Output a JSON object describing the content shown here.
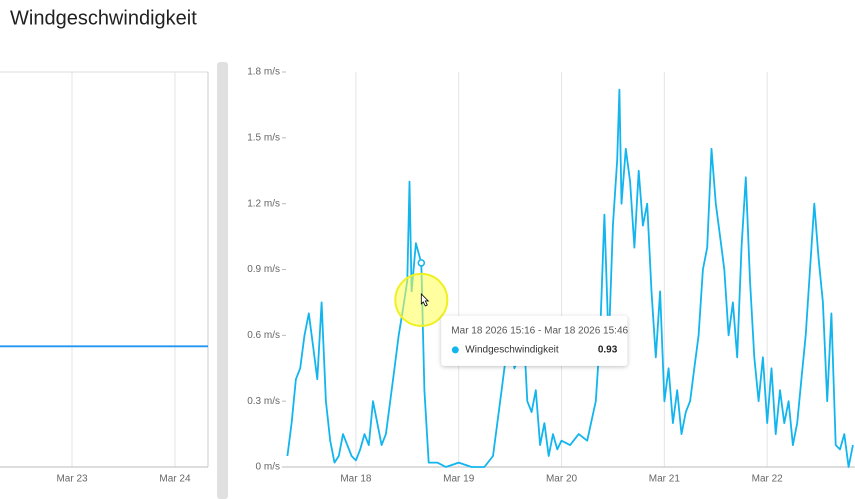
{
  "header": {
    "title": "Windgeschwindigkeit"
  },
  "chart_data": [
    {
      "type": "line",
      "x": [
        "2026-03-22T07:13",
        "2026-03-24T07:42"
      ],
      "series": [
        {
          "name": "Windgeschwindigkeit",
          "color": "#2196f3",
          "values": [
            0.55,
            0.55
          ]
        }
      ],
      "xlim": [
        "2026-03-22T07:13",
        "2026-03-24T07:42"
      ],
      "xticks": [
        {
          "value": "2026-03-23T00:00",
          "label": "Mar 23"
        },
        {
          "value": "2026-03-24T00:00",
          "label": "Mar 24"
        }
      ],
      "ylim": [
        0,
        1.8
      ],
      "grid": true
    },
    {
      "type": "line",
      "x": [
        "2026-03-17T08:00",
        "2026-03-17T09:00",
        "2026-03-17T10:00",
        "2026-03-17T11:00",
        "2026-03-17T12:00",
        "2026-03-17T13:00",
        "2026-03-17T14:00",
        "2026-03-17T15:00",
        "2026-03-17T16:00",
        "2026-03-17T17:00",
        "2026-03-17T18:00",
        "2026-03-17T19:00",
        "2026-03-17T20:00",
        "2026-03-17T21:00",
        "2026-03-17T22:00",
        "2026-03-17T23:00",
        "2026-03-18T00:00",
        "2026-03-18T01:00",
        "2026-03-18T02:00",
        "2026-03-18T03:00",
        "2026-03-18T04:00",
        "2026-03-18T05:00",
        "2026-03-18T06:00",
        "2026-03-18T07:00",
        "2026-03-18T08:00",
        "2026-03-18T09:00",
        "2026-03-18T10:00",
        "2026-03-18T11:00",
        "2026-03-18T12:00",
        "2026-03-18T12:30",
        "2026-03-18T13:00",
        "2026-03-18T14:00",
        "2026-03-18T15:16",
        "2026-03-18T16:00",
        "2026-03-18T17:00",
        "2026-03-18T19:00",
        "2026-03-18T21:00",
        "2026-03-19T00:00",
        "2026-03-19T03:00",
        "2026-03-19T06:00",
        "2026-03-19T08:00",
        "2026-03-19T09:00",
        "2026-03-19T10:00",
        "2026-03-19T11:00",
        "2026-03-19T12:00",
        "2026-03-19T13:00",
        "2026-03-19T14:00",
        "2026-03-19T15:00",
        "2026-03-19T16:00",
        "2026-03-19T17:00",
        "2026-03-19T18:00",
        "2026-03-19T19:00",
        "2026-03-19T20:00",
        "2026-03-19T21:00",
        "2026-03-19T22:00",
        "2026-03-19T23:00",
        "2026-03-20T00:00",
        "2026-03-20T02:00",
        "2026-03-20T04:00",
        "2026-03-20T06:00",
        "2026-03-20T08:00",
        "2026-03-20T09:00",
        "2026-03-20T10:00",
        "2026-03-20T11:00",
        "2026-03-20T12:00",
        "2026-03-20T13:00",
        "2026-03-20T13:30",
        "2026-03-20T14:00",
        "2026-03-20T15:00",
        "2026-03-20T16:00",
        "2026-03-20T17:00",
        "2026-03-20T18:00",
        "2026-03-20T19:00",
        "2026-03-20T20:00",
        "2026-03-20T21:00",
        "2026-03-20T22:00",
        "2026-03-20T23:00",
        "2026-03-21T00:00",
        "2026-03-21T01:00",
        "2026-03-21T02:00",
        "2026-03-21T03:00",
        "2026-03-21T04:00",
        "2026-03-21T05:00",
        "2026-03-21T06:00",
        "2026-03-21T07:00",
        "2026-03-21T08:00",
        "2026-03-21T09:00",
        "2026-03-21T10:00",
        "2026-03-21T11:00",
        "2026-03-21T12:00",
        "2026-03-21T13:00",
        "2026-03-21T14:00",
        "2026-03-21T15:00",
        "2026-03-21T16:00",
        "2026-03-21T17:00",
        "2026-03-21T18:00",
        "2026-03-21T19:00",
        "2026-03-21T20:00",
        "2026-03-21T21:00",
        "2026-03-21T22:00",
        "2026-03-21T23:00",
        "2026-03-22T00:00",
        "2026-03-22T01:00",
        "2026-03-22T02:00",
        "2026-03-22T03:00",
        "2026-03-22T04:00",
        "2026-03-22T05:00",
        "2026-03-22T06:00",
        "2026-03-22T07:00",
        "2026-03-22T08:00",
        "2026-03-22T09:00",
        "2026-03-22T10:00",
        "2026-03-22T11:00",
        "2026-03-22T12:00",
        "2026-03-22T13:00",
        "2026-03-22T14:00",
        "2026-03-22T15:00",
        "2026-03-22T16:00",
        "2026-03-22T17:00",
        "2026-03-22T18:00",
        "2026-03-22T19:00",
        "2026-03-22T20:00"
      ],
      "series": [
        {
          "name": "Windgeschwindigkeit",
          "color": "#12b5ee",
          "values": [
            0.05,
            0.2,
            0.4,
            0.45,
            0.6,
            0.7,
            0.55,
            0.4,
            0.75,
            0.3,
            0.12,
            0.02,
            0.05,
            0.15,
            0.1,
            0.05,
            0.03,
            0.08,
            0.15,
            0.1,
            0.3,
            0.2,
            0.1,
            0.15,
            0.3,
            0.45,
            0.6,
            0.72,
            0.85,
            1.3,
            0.8,
            1.02,
            0.93,
            0.35,
            0.02,
            0.02,
            0,
            0.02,
            0,
            0,
            0.05,
            0.2,
            0.35,
            0.5,
            0.6,
            0.45,
            0.5,
            0.68,
            0.3,
            0.25,
            0.35,
            0.1,
            0.2,
            0.05,
            0.15,
            0.08,
            0.12,
            0.1,
            0.15,
            0.12,
            0.3,
            0.6,
            1.15,
            0.55,
            1.1,
            1.4,
            1.72,
            1.2,
            1.45,
            1.3,
            1.0,
            1.35,
            1.1,
            1.2,
            0.8,
            0.5,
            0.8,
            0.3,
            0.45,
            0.2,
            0.35,
            0.15,
            0.25,
            0.3,
            0.45,
            0.6,
            0.9,
            1.0,
            1.45,
            1.2,
            1.05,
            0.9,
            0.6,
            0.75,
            0.5,
            1.0,
            1.32,
            0.85,
            0.5,
            0.3,
            0.5,
            0.2,
            0.45,
            0.15,
            0.35,
            0.2,
            0.3,
            0.1,
            0.2,
            0.4,
            0.6,
            0.9,
            1.2,
            0.95,
            0.75,
            0.3,
            0.7,
            0.1,
            0.08,
            0.15,
            0,
            0.1
          ]
        }
      ],
      "xlim": [
        "2026-03-17T07:41",
        "2026-03-22T20:30"
      ],
      "xticks": [
        {
          "value": "2026-03-18T00:00",
          "label": "Mar 18"
        },
        {
          "value": "2026-03-19T00:00",
          "label": "Mar 19"
        },
        {
          "value": "2026-03-20T00:00",
          "label": "Mar 20"
        },
        {
          "value": "2026-03-21T00:00",
          "label": "Mar 21"
        },
        {
          "value": "2026-03-22T00:00",
          "label": "Mar 22"
        }
      ],
      "ylim": [
        0,
        1.8
      ],
      "yticks": [
        {
          "value": 0,
          "label": "0 m/s"
        },
        {
          "value": 0.3,
          "label": "0.3 m/s"
        },
        {
          "value": 0.6,
          "label": "0.6 m/s"
        },
        {
          "value": 0.9,
          "label": "0.9 m/s"
        },
        {
          "value": 1.2,
          "label": "1.2 m/s"
        },
        {
          "value": 1.5,
          "label": "1.5 m/s"
        },
        {
          "value": 1.8,
          "label": "1.8 m/s"
        }
      ],
      "grid": true,
      "tooltip": {
        "title": "Mar 18 2026 15:16 - Mar 18 2026 15:46",
        "value": 0.93
      }
    }
  ]
}
